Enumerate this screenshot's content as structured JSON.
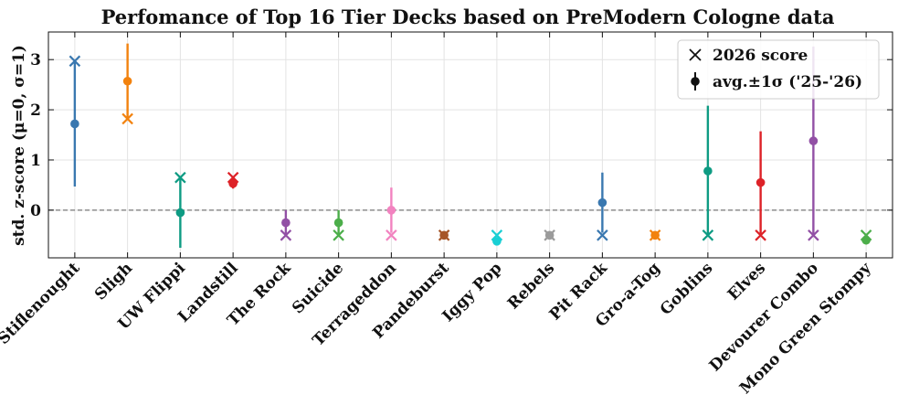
{
  "chart_data": {
    "type": "scatter",
    "title": "Perfomance of Top 16 Tier Decks based on PreModern Cologne data",
    "ylabel": "std. z-score (μ=0, σ=1)",
    "xlabel": "",
    "ylim": [
      -0.95,
      3.55
    ],
    "yticks": [
      0,
      1,
      2,
      3
    ],
    "reference_line": 0,
    "grid": true,
    "legend_position": "top-right",
    "legend": {
      "score_2026": "2026 score",
      "avg_sigma": "avg.±1σ ('25-'26)"
    },
    "categories": [
      "Stiflenought",
      "Sligh",
      "UW Flippi",
      "Landstill",
      "The Rock",
      "Suicide",
      "Terrageddon",
      "Pandeburst",
      "Iggy Pop",
      "Rebels",
      "Pit Rack",
      "Gro-a-Tog",
      "Goblins",
      "Elves",
      "Devourer Combo",
      "Mono Green Stompy"
    ],
    "colors": [
      "#3a78b0",
      "#f2820e",
      "#0e9b83",
      "#dd2228",
      "#9250a5",
      "#4cae4a",
      "#f283c0",
      "#a65628",
      "#19cfd4",
      "#9b9b9b",
      "#3a78b0",
      "#f2820e",
      "#0e9b83",
      "#dd2228",
      "#9250a5",
      "#4cae4a"
    ],
    "avg": [
      1.72,
      2.57,
      -0.05,
      0.53,
      -0.25,
      -0.25,
      0.0,
      -0.5,
      -0.62,
      -0.5,
      0.15,
      -0.5,
      0.78,
      0.55,
      1.38,
      -0.6
    ],
    "sigma": [
      1.25,
      0.75,
      0.7,
      0.1,
      0.25,
      0.25,
      0.45,
      0.0,
      0.08,
      0.0,
      0.6,
      0.0,
      1.3,
      1.02,
      1.88,
      0.08
    ],
    "score_2026": [
      2.97,
      1.82,
      0.65,
      0.65,
      -0.5,
      -0.5,
      -0.5,
      -0.5,
      -0.5,
      -0.5,
      -0.5,
      -0.5,
      -0.5,
      -0.5,
      -0.5,
      -0.5
    ]
  }
}
